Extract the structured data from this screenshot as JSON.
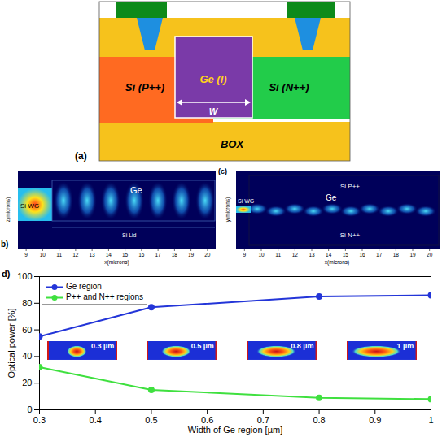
{
  "panel_a": {
    "label": "(a)",
    "p_region": "Si (P++)",
    "ge_region": "Ge (I)",
    "n_region": "Si (N++)",
    "width_label": "W",
    "box_label": "BOX"
  },
  "panel_b": {
    "label": "b)",
    "wg": "Si WG",
    "ge": "Ge",
    "lid": "Si Lid",
    "xlabel": "x(microns)",
    "ylabel": "z(microns)",
    "xlim": [
      8.5,
      20.5
    ],
    "xticks": [
      9,
      10,
      11,
      12,
      13,
      14,
      15,
      16,
      17,
      18,
      19,
      20
    ]
  },
  "panel_c": {
    "label": "(c)",
    "wg": "Si WG",
    "ge": "Ge",
    "p_region": "Si P++",
    "n_region": "Si N++",
    "xlabel": "x(microns)",
    "ylabel": "y(microns)",
    "xlim": [
      8.5,
      20.5
    ],
    "xticks": [
      9,
      10,
      11,
      12,
      13,
      14,
      15,
      16,
      17,
      18,
      19,
      20
    ]
  },
  "chart_data": {
    "type": "line",
    "panel_label": "d)",
    "xlabel": "Width of Ge region [µm]",
    "ylabel": "Optical power [%]",
    "x": [
      0.3,
      0.5,
      0.8,
      1
    ],
    "series": [
      {
        "name": "Ge region",
        "color": "#2335d8",
        "marker": "circle",
        "values": [
          55,
          77,
          85,
          86
        ]
      },
      {
        "name": "P++ and N++ regions",
        "color": "#3fe03f",
        "marker": "circle",
        "values": [
          32,
          15,
          9,
          8
        ]
      }
    ],
    "xlim": [
      0.3,
      1
    ],
    "xticks": [
      0.3,
      0.4,
      0.5,
      0.6,
      0.7,
      0.8,
      0.9,
      1
    ],
    "ylim": [
      0,
      100
    ],
    "yticks": [
      0,
      20,
      40,
      60,
      80,
      100
    ],
    "grid": false,
    "legend": "top-left",
    "annotations": [
      "0.3 µm",
      "0.5 µm",
      "0.8 µm",
      "1 µm"
    ]
  }
}
